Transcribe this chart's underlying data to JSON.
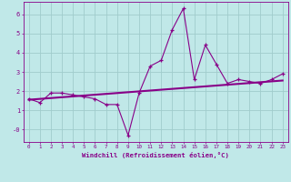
{
  "xlabel": "Windchill (Refroidissement éolien,°C)",
  "bg_color": "#c0e8e8",
  "grid_color": "#a0cccc",
  "line_color": "#880088",
  "xlim": [
    -0.5,
    23.5
  ],
  "ylim": [
    -0.65,
    6.65
  ],
  "xticks": [
    0,
    1,
    2,
    3,
    4,
    5,
    6,
    7,
    8,
    9,
    10,
    11,
    12,
    13,
    14,
    15,
    16,
    17,
    18,
    19,
    20,
    21,
    22,
    23
  ],
  "yticks": [
    0,
    1,
    2,
    3,
    4,
    5,
    6
  ],
  "ytick_labels": [
    "-0",
    "1",
    "2",
    "3",
    "4",
    "5",
    "6"
  ],
  "scatter_x": [
    0,
    1,
    2,
    3,
    4,
    5,
    6,
    7,
    8,
    9,
    10,
    11,
    12,
    13,
    14,
    15,
    16,
    17,
    18,
    19,
    20,
    21,
    22,
    23
  ],
  "scatter_y": [
    1.6,
    1.4,
    1.9,
    1.9,
    1.8,
    1.7,
    1.6,
    1.3,
    1.3,
    -0.3,
    1.9,
    3.3,
    3.6,
    5.2,
    6.3,
    2.6,
    4.4,
    3.4,
    2.4,
    2.6,
    2.5,
    2.4,
    2.6,
    2.9
  ],
  "trend_x": [
    0,
    23
  ],
  "trend_y": [
    1.55,
    2.55
  ]
}
